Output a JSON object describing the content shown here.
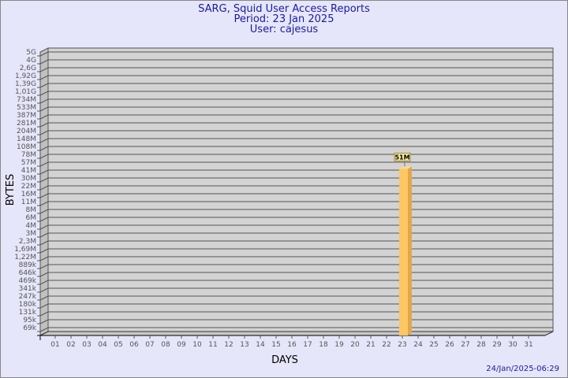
{
  "header": {
    "title": "SARG, Squid User Access Reports",
    "period": "Period: 23 Jan 2025",
    "user": "User: cajesus"
  },
  "footer": {
    "generated": "24/Jan/2025-06:29"
  },
  "colors": {
    "background": "#e6e6fa",
    "plot": "#d3d3d3",
    "bar": "#ffc664",
    "bar_side": "#e0a84c",
    "title": "#1a1aa0"
  },
  "chart_data": {
    "type": "bar",
    "xlabel": "DAYS",
    "ylabel": "BYTES",
    "y_scale": "log-like (custom tick steps)",
    "y_ticks": [
      "5G",
      "4G",
      "2,6G",
      "1,92G",
      "1,39G",
      "1,01G",
      "734M",
      "533M",
      "387M",
      "281M",
      "204M",
      "148M",
      "108M",
      "78M",
      "57M",
      "41M",
      "30M",
      "22M",
      "16M",
      "11M",
      "8M",
      "6M",
      "4M",
      "3M",
      "2,3M",
      "1,69M",
      "1,22M",
      "889k",
      "646k",
      "469k",
      "341k",
      "247k",
      "180k",
      "131k",
      "95k",
      "69k"
    ],
    "categories": [
      "01",
      "02",
      "03",
      "04",
      "05",
      "06",
      "07",
      "08",
      "09",
      "10",
      "11",
      "12",
      "13",
      "14",
      "15",
      "16",
      "17",
      "18",
      "19",
      "20",
      "21",
      "22",
      "23",
      "24",
      "25",
      "26",
      "27",
      "28",
      "29",
      "30",
      "31"
    ],
    "bars": [
      {
        "day": "23",
        "value_bytes": 51000000,
        "label": "51M"
      }
    ],
    "grid": true
  }
}
